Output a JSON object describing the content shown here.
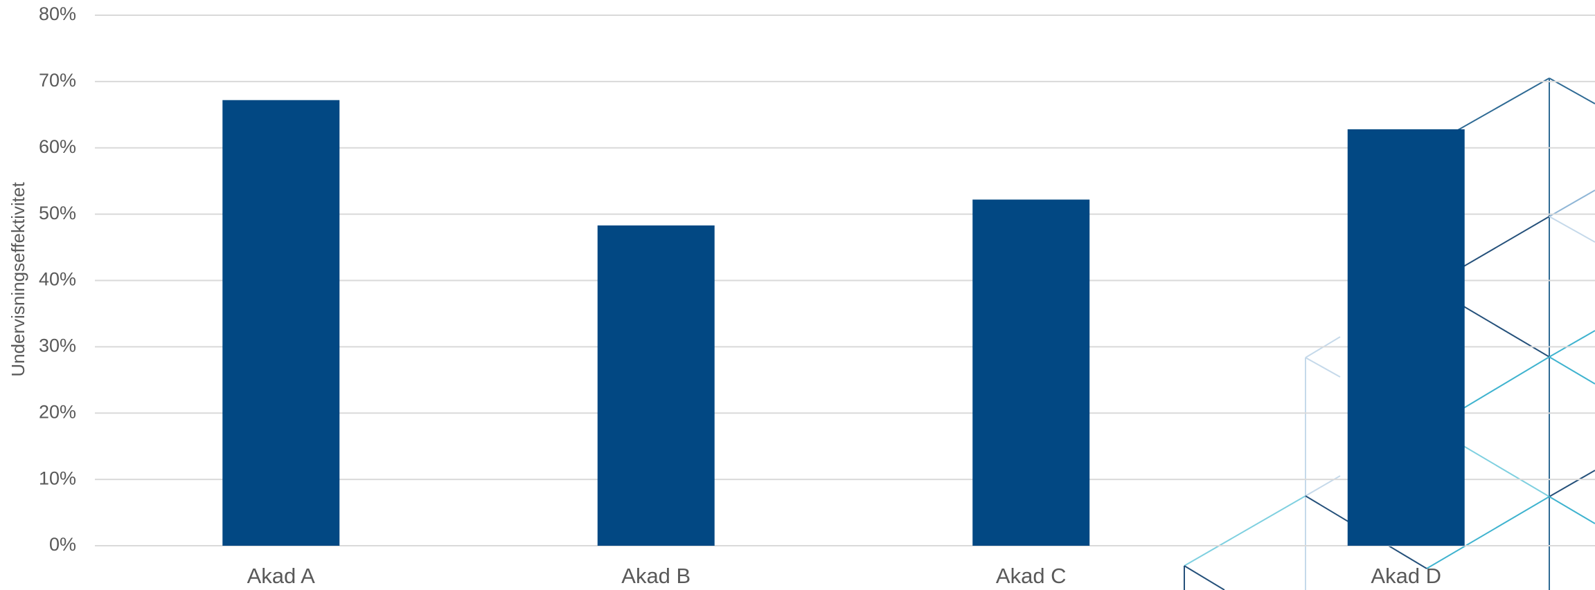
{
  "chart_data": {
    "type": "bar",
    "y_label": "Undervisningseffektivitet",
    "categories": [
      "Akad A",
      "Akad B",
      "Akad C",
      "Akad D"
    ],
    "values": [
      67.2,
      48.3,
      52.2,
      62.8
    ],
    "color": "#024883",
    "ylim": [
      0,
      80
    ],
    "yticks": [
      {
        "value": 0,
        "label": "0%"
      },
      {
        "value": 10,
        "label": "10%"
      },
      {
        "value": 20,
        "label": "20%"
      },
      {
        "value": 30,
        "label": "30%"
      },
      {
        "value": 40,
        "label": "40%"
      },
      {
        "value": 50,
        "label": "50%"
      },
      {
        "value": 60,
        "label": "60%"
      },
      {
        "value": 70,
        "label": "70%"
      },
      {
        "value": 80,
        "label": "80%"
      }
    ],
    "grid": true
  }
}
